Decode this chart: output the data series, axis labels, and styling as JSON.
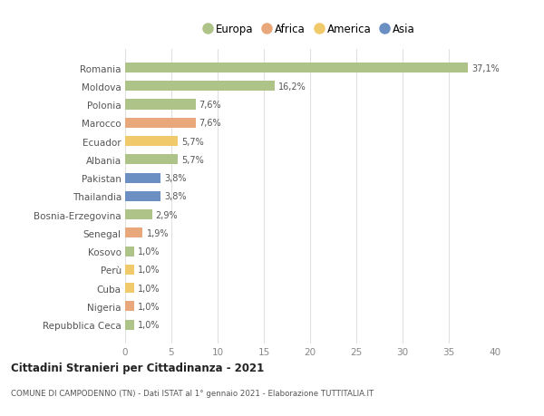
{
  "countries": [
    "Romania",
    "Moldova",
    "Polonia",
    "Marocco",
    "Ecuador",
    "Albania",
    "Pakistan",
    "Thailandia",
    "Bosnia-Erzegovina",
    "Senegal",
    "Kosovo",
    "Perù",
    "Cuba",
    "Nigeria",
    "Repubblica Ceca"
  ],
  "values": [
    37.1,
    16.2,
    7.6,
    7.6,
    5.7,
    5.7,
    3.8,
    3.8,
    2.9,
    1.9,
    1.0,
    1.0,
    1.0,
    1.0,
    1.0
  ],
  "labels": [
    "37,1%",
    "16,2%",
    "7,6%",
    "7,6%",
    "5,7%",
    "5,7%",
    "3,8%",
    "3,8%",
    "2,9%",
    "1,9%",
    "1,0%",
    "1,0%",
    "1,0%",
    "1,0%",
    "1,0%"
  ],
  "continents": [
    "Europa",
    "Europa",
    "Europa",
    "Africa",
    "America",
    "Europa",
    "Asia",
    "Asia",
    "Europa",
    "Africa",
    "Europa",
    "America",
    "America",
    "Africa",
    "Europa"
  ],
  "continent_colors": {
    "Europa": "#aec387",
    "Africa": "#e8a87c",
    "America": "#f0c96a",
    "Asia": "#6b8fc2"
  },
  "legend_order": [
    "Europa",
    "Africa",
    "America",
    "Asia"
  ],
  "title": "Cittadini Stranieri per Cittadinanza - 2021",
  "subtitle": "COMUNE DI CAMPODENNO (TN) - Dati ISTAT al 1° gennaio 2021 - Elaborazione TUTTITALIA.IT",
  "xlim": [
    0,
    40
  ],
  "xticks": [
    0,
    5,
    10,
    15,
    20,
    25,
    30,
    35,
    40
  ],
  "background_color": "#ffffff",
  "grid_color": "#e0e0e0"
}
